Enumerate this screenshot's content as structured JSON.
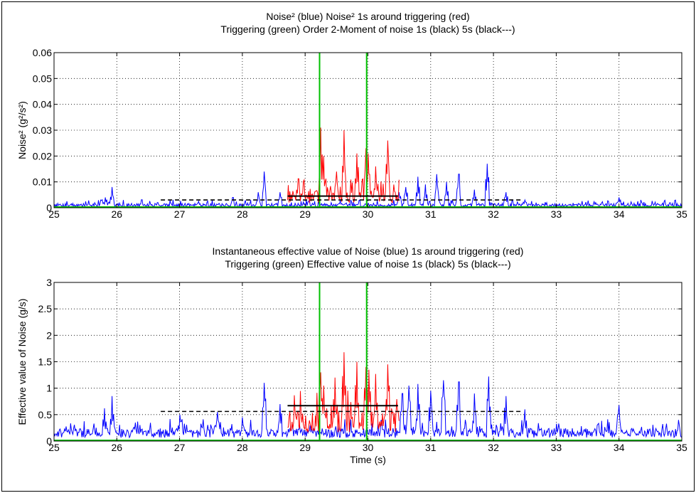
{
  "chart_data": [
    {
      "type": "line",
      "title": [
        "Noise² (blue) Noise² 1s around triggering (red)",
        "Triggering (green) Order 2-Moment of noise 1s (black) 5s (black---)"
      ],
      "xlabel": "",
      "ylabel": "Noise² (g²/s²)",
      "xlim": [
        25,
        35
      ],
      "ylim": [
        0,
        0.06
      ],
      "xticks": [
        "25",
        "26",
        "27",
        "28",
        "29",
        "30",
        "31",
        "32",
        "33",
        "34",
        "35"
      ],
      "yticks": [
        "0",
        "0.01",
        "0.02",
        "0.03",
        "0.04",
        "0.05",
        "0.06"
      ],
      "grid": true,
      "series": [
        {
          "color": "#0000ff",
          "style": "noise",
          "x_range": [
            25,
            35
          ],
          "seed": 7,
          "base": 0.0009,
          "jitter": 0.0018,
          "bumps": [
            [
              25.82,
              0.004
            ],
            [
              25.92,
              0.008
            ],
            [
              26.65,
              0.002
            ],
            [
              27.3,
              0.0025
            ],
            [
              27.85,
              0.004
            ],
            [
              28.25,
              0.006
            ],
            [
              28.35,
              0.014
            ],
            [
              28.6,
              0.006
            ],
            [
              30.5,
              0.006
            ],
            [
              30.6,
              0.008
            ],
            [
              30.8,
              0.012
            ],
            [
              30.92,
              0.009
            ],
            [
              31.1,
              0.013
            ],
            [
              31.25,
              0.01
            ],
            [
              31.45,
              0.013
            ],
            [
              31.7,
              0.007
            ],
            [
              31.9,
              0.017
            ],
            [
              32.2,
              0.006
            ],
            [
              32.5,
              0.003
            ],
            [
              34.0,
              0.004
            ]
          ]
        },
        {
          "color": "#ff0000",
          "style": "noise",
          "x_range": [
            28.72,
            30.5
          ],
          "seed": 13,
          "base": 0.006,
          "jitter": 0.006,
          "bumps": [
            [
              29.25,
              0.031
            ],
            [
              29.3,
              0.02
            ],
            [
              29.5,
              0.014
            ],
            [
              29.62,
              0.03
            ],
            [
              29.82,
              0.021
            ],
            [
              29.97,
              0.023
            ],
            [
              30.0,
              0.021
            ],
            [
              30.12,
              0.016
            ],
            [
              30.32,
              0.026
            ]
          ]
        },
        {
          "color": "#00c000",
          "style": "vline",
          "x": [
            29.23,
            29.98
          ],
          "y": [
            0,
            0.06
          ]
        },
        {
          "color": "#00c000",
          "style": "hline",
          "x": [
            25,
            35
          ],
          "y": 0
        },
        {
          "color": "#000000",
          "style": "solid",
          "x": [
            28.72,
            30.48
          ],
          "y": 0.0045
        },
        {
          "color": "#000000",
          "style": "dashed",
          "x": [
            26.7,
            32.45
          ],
          "y": 0.003
        }
      ]
    },
    {
      "type": "line",
      "title": [
        "Instantaneous effective value of Noise (blue) 1s around triggering (red)",
        "Triggering (green) Effective value of noise 1s (black) 5s (black---)"
      ],
      "xlabel": "Time (s)",
      "ylabel": "Effective value of Noise (g/s)",
      "xlim": [
        25,
        35
      ],
      "ylim": [
        0,
        3
      ],
      "xticks": [
        "25",
        "26",
        "27",
        "28",
        "29",
        "30",
        "31",
        "32",
        "33",
        "34",
        "35"
      ],
      "yticks": [
        "0",
        "0.5",
        "1",
        "1.5",
        "2",
        "2.5",
        "3"
      ],
      "grid": true,
      "series": [
        {
          "color": "#0000ff",
          "style": "noise",
          "x_range": [
            25,
            35
          ],
          "seed": 21,
          "base": 0.22,
          "jitter": 0.22,
          "bumps": [
            [
              25.8,
              0.62
            ],
            [
              25.92,
              0.85
            ],
            [
              26.3,
              0.35
            ],
            [
              27.0,
              0.5
            ],
            [
              27.6,
              0.55
            ],
            [
              28.0,
              0.45
            ],
            [
              28.35,
              1.1
            ],
            [
              28.6,
              0.7
            ],
            [
              30.55,
              0.9
            ],
            [
              30.65,
              1.05
            ],
            [
              30.8,
              1.08
            ],
            [
              31.0,
              0.95
            ],
            [
              31.2,
              1.15
            ],
            [
              31.45,
              1.12
            ],
            [
              31.7,
              0.9
            ],
            [
              31.92,
              1.22
            ],
            [
              32.2,
              0.85
            ],
            [
              32.5,
              0.6
            ],
            [
              34.0,
              0.68
            ],
            [
              34.95,
              0.4
            ]
          ]
        },
        {
          "color": "#ff0000",
          "style": "noise",
          "x_range": [
            28.72,
            30.5
          ],
          "seed": 5,
          "base": 0.55,
          "jitter": 0.5,
          "bumps": [
            [
              29.25,
              1.3
            ],
            [
              29.3,
              1.05
            ],
            [
              29.48,
              1.2
            ],
            [
              29.62,
              1.68
            ],
            [
              29.82,
              1.5
            ],
            [
              29.97,
              1.4
            ],
            [
              30.02,
              1.35
            ],
            [
              30.12,
              1.27
            ],
            [
              30.32,
              1.45
            ]
          ]
        },
        {
          "color": "#00c000",
          "style": "vline",
          "x": [
            29.23,
            29.98
          ],
          "y": [
            0,
            3
          ]
        },
        {
          "color": "#00c000",
          "style": "hline",
          "x": [
            25,
            35
          ],
          "y": 0
        },
        {
          "color": "#000000",
          "style": "solid",
          "x": [
            28.72,
            30.48
          ],
          "y": 0.67
        },
        {
          "color": "#000000",
          "style": "dashed",
          "x": [
            26.7,
            32.45
          ],
          "y": 0.56
        }
      ]
    }
  ]
}
